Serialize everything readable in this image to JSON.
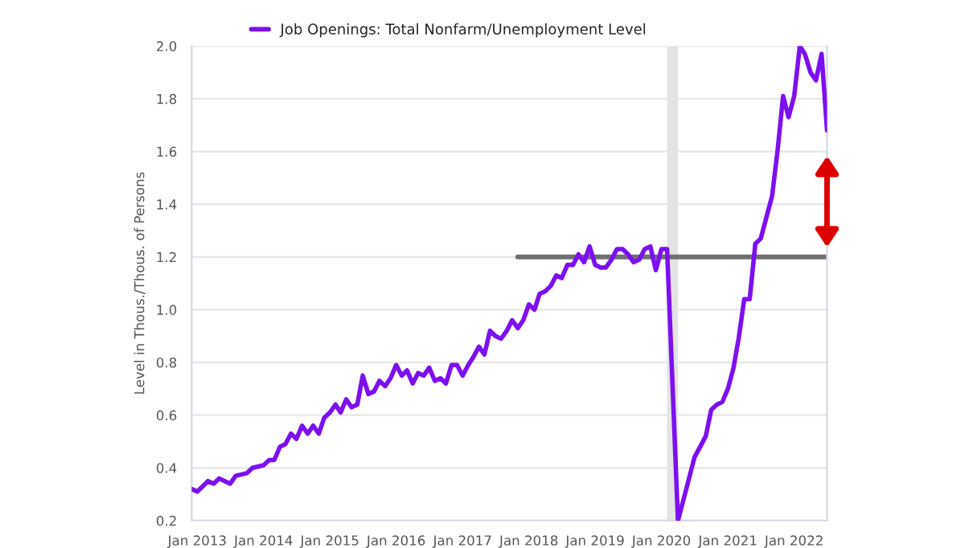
{
  "chart_data": {
    "type": "line",
    "ylabel": "Level in Thous./Thous. of Persons",
    "series": [
      {
        "name": "Job Openings: Total Nonfarm/Unemployment Level",
        "color": "#7d0ff0",
        "x": [
          "2012-12",
          "2013-01",
          "2013-03",
          "2013-04",
          "2013-05",
          "2013-07",
          "2013-08",
          "2013-10",
          "2013-11",
          "2014-01",
          "2014-02",
          "2014-03",
          "2014-04",
          "2014-05",
          "2014-06",
          "2014-07",
          "2014-08",
          "2014-09",
          "2014-10",
          "2014-11",
          "2014-12",
          "2015-01",
          "2015-02",
          "2015-03",
          "2015-04",
          "2015-05",
          "2015-06",
          "2015-07",
          "2015-08",
          "2015-09",
          "2015-10",
          "2015-11",
          "2015-12",
          "2016-01",
          "2016-02",
          "2016-03",
          "2016-04",
          "2016-05",
          "2016-06",
          "2016-07",
          "2016-08",
          "2016-09",
          "2016-10",
          "2016-11",
          "2016-12",
          "2017-01",
          "2017-02",
          "2017-03",
          "2017-04",
          "2017-05",
          "2017-06",
          "2017-07",
          "2017-08",
          "2017-09",
          "2017-10",
          "2017-11",
          "2017-12",
          "2018-01",
          "2018-02",
          "2018-03",
          "2018-04",
          "2018-05",
          "2018-06",
          "2018-07",
          "2018-08",
          "2018-09",
          "2018-10",
          "2018-11",
          "2018-12",
          "2019-01",
          "2019-02",
          "2019-03",
          "2019-04",
          "2019-05",
          "2019-06",
          "2019-07",
          "2019-08",
          "2019-09",
          "2019-10",
          "2019-11",
          "2019-12",
          "2020-01",
          "2020-02",
          "2020-04",
          "2020-06",
          "2020-07",
          "2020-09",
          "2020-10",
          "2020-11",
          "2020-12",
          "2021-01",
          "2021-02",
          "2021-03",
          "2021-04",
          "2021-05",
          "2021-06",
          "2021-07",
          "2021-09",
          "2021-10",
          "2021-11",
          "2021-12",
          "2022-01",
          "2022-02",
          "2022-03",
          "2022-04",
          "2022-05",
          "2022-06",
          "2022-07"
        ],
        "values": [
          0.32,
          0.31,
          0.35,
          0.34,
          0.36,
          0.34,
          0.37,
          0.38,
          0.4,
          0.41,
          0.43,
          0.43,
          0.48,
          0.49,
          0.53,
          0.51,
          0.56,
          0.53,
          0.56,
          0.53,
          0.59,
          0.61,
          0.64,
          0.61,
          0.66,
          0.63,
          0.64,
          0.75,
          0.68,
          0.69,
          0.73,
          0.71,
          0.74,
          0.79,
          0.75,
          0.77,
          0.72,
          0.76,
          0.75,
          0.78,
          0.73,
          0.74,
          0.72,
          0.79,
          0.79,
          0.75,
          0.79,
          0.82,
          0.86,
          0.83,
          0.92,
          0.9,
          0.89,
          0.92,
          0.96,
          0.93,
          0.96,
          1.02,
          1.0,
          1.06,
          1.07,
          1.09,
          1.13,
          1.12,
          1.17,
          1.17,
          1.21,
          1.18,
          1.24,
          1.17,
          1.16,
          1.16,
          1.19,
          1.23,
          1.23,
          1.21,
          1.18,
          1.19,
          1.23,
          1.24,
          1.15,
          1.23,
          1.23,
          0.2,
          0.36,
          0.44,
          0.52,
          0.62,
          0.64,
          0.65,
          0.7,
          0.78,
          0.89,
          1.04,
          1.04,
          1.25,
          1.27,
          1.43,
          1.6,
          1.81,
          1.73,
          1.81,
          2.0,
          1.97,
          1.9,
          1.87,
          1.97,
          1.68
        ]
      },
      {
        "type": "line",
        "color": "#707070",
        "x": [
          "2017-11",
          "2022-07"
        ],
        "values": [
          1.2,
          1.2
        ]
      }
    ],
    "xlim": [
      "2012-12",
      "2022-07"
    ],
    "ylim": [
      0.2,
      2.0
    ],
    "xticks": [
      {
        "value": "2013-01",
        "label": "Jan 2013"
      },
      {
        "value": "2014-01",
        "label": "Jan 2014"
      },
      {
        "value": "2015-01",
        "label": "Jan 2015"
      },
      {
        "value": "2016-01",
        "label": "Jan 2016"
      },
      {
        "value": "2017-01",
        "label": "Jan 2017"
      },
      {
        "value": "2018-01",
        "label": "Jan 2018"
      },
      {
        "value": "2019-01",
        "label": "Jan 2019"
      },
      {
        "value": "2020-01",
        "label": "Jan 2020"
      },
      {
        "value": "2021-01",
        "label": "Jan 2021"
      },
      {
        "value": "2022-01",
        "label": "Jan 2022"
      }
    ],
    "yticks": [
      0.2,
      0.4,
      0.6,
      0.8,
      {
        "value": 1,
        "label": "1.0"
      },
      1.2,
      1.4,
      1.6,
      1.8,
      {
        "value": 2,
        "label": "2.0"
      }
    ],
    "bands": [
      {
        "axis": "x",
        "from": "2020-02",
        "to": "2020-04",
        "color": "#e3e3e3"
      }
    ],
    "grid": "y",
    "legend": "top left"
  }
}
